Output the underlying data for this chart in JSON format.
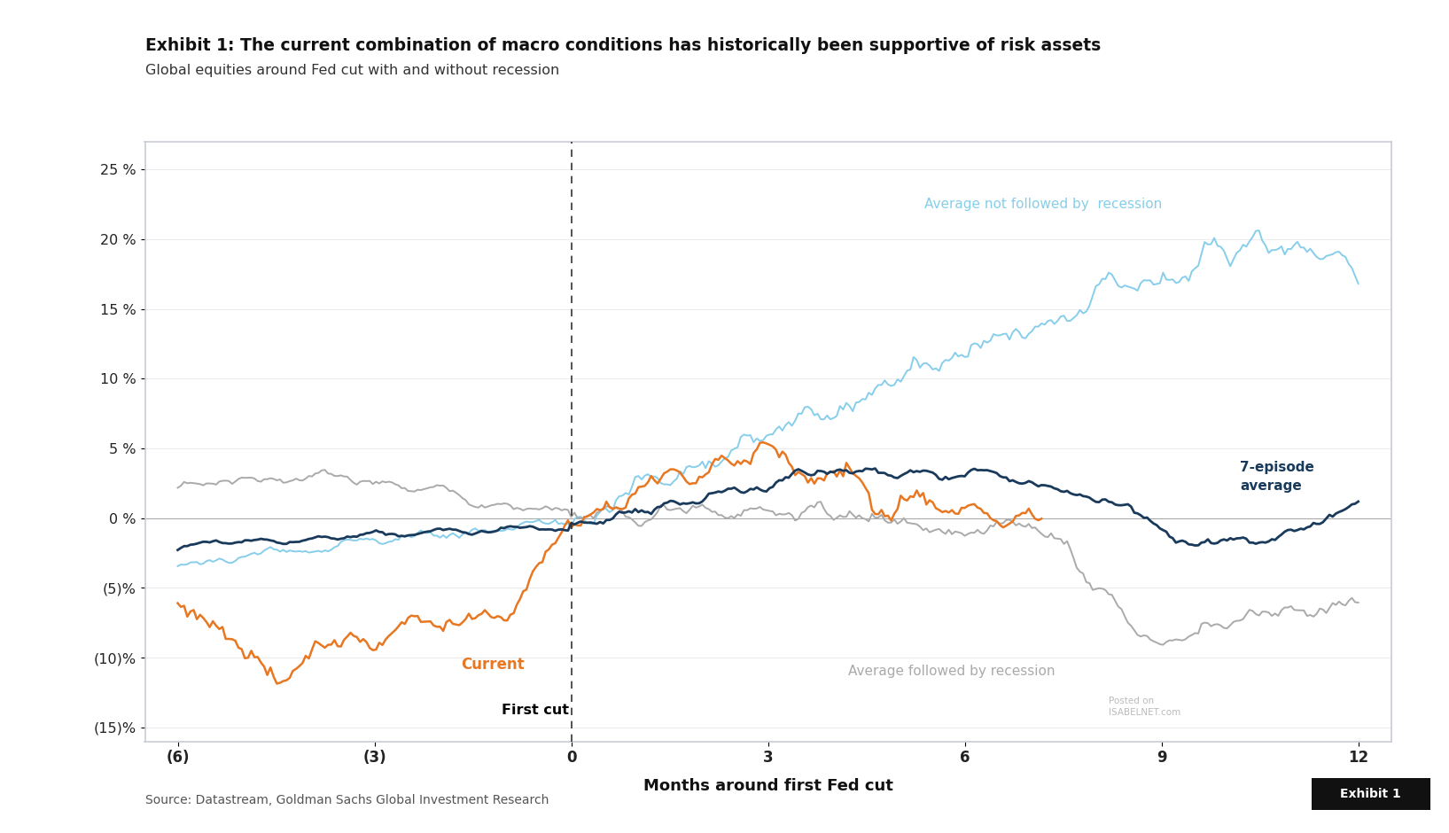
{
  "title": "Exhibit 1: The current combination of macro conditions has historically been supportive of risk assets",
  "subtitle": "Global equities around Fed cut with and without recession",
  "xlabel": "Months around first Fed cut",
  "source": "Source: Datastream, Goldman Sachs Global Investment Research",
  "exhibit_label": "Exhibit 1",
  "fig_bg_color": "#ffffff",
  "plot_bg_color": "#ffffff",
  "border_color": "#c8cdd4",
  "colors": {
    "no_recession": "#87CEEB",
    "with_recession": "#aaaaaa",
    "current": "#E87722",
    "average": "#1a3a5c"
  },
  "yticks": [
    -15,
    -10,
    -5,
    0,
    5,
    10,
    15,
    20,
    25
  ],
  "ytick_labels": [
    "(15)%",
    "(10)%",
    "(5)%",
    "0 %",
    "5 %",
    "10 %",
    "15 %",
    "20 %",
    "25 %"
  ],
  "xticks": [
    -6,
    -3,
    0,
    3,
    6,
    9,
    12
  ],
  "xtick_labels": [
    "(6)",
    "(3)",
    "0",
    "3",
    "6",
    "9",
    "12"
  ],
  "ylim": [
    -16,
    27
  ],
  "xlim": [
    -6.5,
    12.5
  ]
}
